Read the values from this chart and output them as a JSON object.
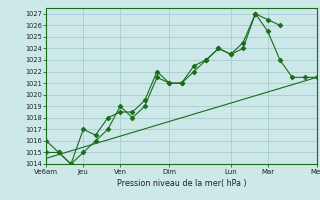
{
  "title": "",
  "xlabel": "Pression niveau de la mer( hPa )",
  "ylabel": "",
  "ylim": [
    1014,
    1027.5
  ],
  "yticks": [
    1014,
    1015,
    1016,
    1017,
    1018,
    1019,
    1020,
    1021,
    1022,
    1023,
    1024,
    1025,
    1026,
    1027
  ],
  "x_labels": [
    "Ve6am",
    "Jeu",
    "Ven",
    "Dim",
    "Lun",
    "Mar",
    "Mer"
  ],
  "background_color": "#cce8e8",
  "grid_color": "#aacccc",
  "line_color": "#1a6b1a",
  "line1_x": [
    0,
    1,
    2,
    3,
    4,
    5,
    6,
    7,
    8,
    9,
    10,
    11,
    12,
    13,
    14,
    15,
    16,
    17,
    18,
    19
  ],
  "line1_y": [
    1015.0,
    1015.0,
    1014.0,
    1015.0,
    1016.0,
    1017.0,
    1019.0,
    1018.0,
    1019.0,
    1021.5,
    1021.0,
    1021.0,
    1022.5,
    1023.0,
    1024.0,
    1023.5,
    1024.0,
    1027.0,
    1026.5,
    1026.0
  ],
  "line2_x": [
    0,
    1,
    2,
    3,
    4,
    5,
    6,
    7,
    8,
    9,
    10,
    11,
    12,
    13,
    14,
    15,
    16,
    17,
    18,
    19,
    20,
    21,
    22
  ],
  "line2_y": [
    1016.0,
    1015.0,
    1014.0,
    1017.0,
    1016.5,
    1018.0,
    1018.5,
    1018.5,
    1019.5,
    1022.0,
    1021.0,
    1021.0,
    1022.0,
    1023.0,
    1024.0,
    1023.5,
    1024.5,
    1027.0,
    1025.5,
    1023.0,
    1021.5,
    1021.5,
    1021.5
  ],
  "line3_x": [
    0,
    22
  ],
  "line3_y": [
    1014.5,
    1021.5
  ],
  "x_tick_positions": [
    0,
    3,
    6,
    10,
    15,
    18,
    22
  ],
  "total_points": 23,
  "figsize": [
    3.2,
    2.0
  ],
  "dpi": 100
}
